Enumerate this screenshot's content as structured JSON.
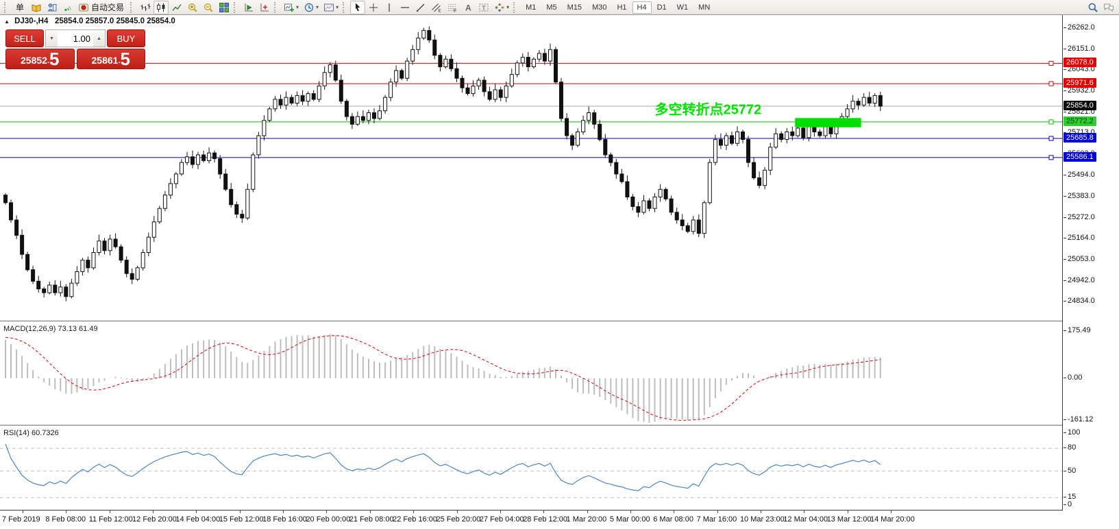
{
  "window": {
    "title_symbol": "DJ30-,H4",
    "ohlc": "25854.0 25857.0 25845.0 25854.0"
  },
  "toolbar": {
    "new_order_label": "单",
    "autotrading_label": "自动交易",
    "items": [
      {
        "type": "grip"
      },
      {
        "type": "text",
        "name": "new-order-button",
        "label": "单"
      },
      {
        "type": "icon",
        "name": "market-watch-icon"
      },
      {
        "type": "icon",
        "name": "navigator-icon"
      },
      {
        "type": "icon",
        "name": "signals-icon"
      },
      {
        "type": "icon-text",
        "name": "autotrading-button",
        "label": "自动交易"
      },
      {
        "type": "grip"
      },
      {
        "type": "icon",
        "name": "bar-chart-button"
      },
      {
        "type": "icon",
        "name": "candlestick-chart-button",
        "active": true
      },
      {
        "type": "icon",
        "name": "line-chart-button"
      },
      {
        "type": "icon",
        "name": "zoom-in-button"
      },
      {
        "type": "icon",
        "name": "zoom-out-button"
      },
      {
        "type": "icon",
        "name": "tile-windows-button"
      },
      {
        "type": "grip"
      },
      {
        "type": "icon",
        "name": "auto-scroll-button"
      },
      {
        "type": "icon",
        "name": "chart-shift-button"
      },
      {
        "type": "grip"
      },
      {
        "type": "icon",
        "name": "new-chart-button",
        "dropdown": true
      },
      {
        "type": "icon",
        "name": "profiles-button",
        "dropdown": true
      },
      {
        "type": "icon",
        "name": "templates-button",
        "dropdown": true
      },
      {
        "type": "grip"
      },
      {
        "type": "icon",
        "name": "cursor-button",
        "active": true
      },
      {
        "type": "icon",
        "name": "crosshair-button"
      },
      {
        "type": "icon",
        "name": "vertical-line-button"
      },
      {
        "type": "icon",
        "name": "horizontal-line-button"
      },
      {
        "type": "icon",
        "name": "trendline-button"
      },
      {
        "type": "icon",
        "name": "equidistant-channel-button"
      },
      {
        "type": "icon",
        "name": "fibonacci-button"
      },
      {
        "type": "icon",
        "name": "text-button"
      },
      {
        "type": "icon",
        "name": "text-label-button"
      },
      {
        "type": "icon",
        "name": "arrows-button",
        "dropdown": true
      },
      {
        "type": "grip"
      },
      {
        "type": "timeframes"
      },
      {
        "type": "spacer"
      },
      {
        "type": "icon",
        "name": "search-button"
      },
      {
        "type": "icon",
        "name": "chat-button"
      }
    ],
    "timeframes": {
      "options": [
        "M1",
        "M5",
        "M15",
        "M30",
        "H1",
        "H4",
        "D1",
        "W1",
        "MN"
      ],
      "active": "H4"
    }
  },
  "one_click": {
    "sell_label": "SELL",
    "buy_label": "BUY",
    "volume": "1.00",
    "sell_price_int": "25852",
    "sell_price_dec": "5",
    "buy_price_int": "25861",
    "buy_price_dec": "5"
  },
  "price_axis": {
    "ticks": [
      "26262.0",
      "26151.0",
      "26043.0",
      "25932.0",
      "25821.0",
      "25713.0",
      "25602.0",
      "25494.0",
      "25383.0",
      "25272.0",
      "25164.0",
      "25053.0",
      "24942.0",
      "24834.0"
    ]
  },
  "levels": [
    {
      "name": "resistance-line-1",
      "price": 26078.0,
      "label": "26078.0",
      "line_color": "#d80000",
      "label_bg": "#e40000",
      "label_color": "#ffffff",
      "handle": true
    },
    {
      "name": "resistance-line-2",
      "price": 25971.6,
      "label": "25971.6",
      "line_color": "#d80000",
      "label_bg": "#e40000",
      "label_color": "#ffffff",
      "handle": true
    },
    {
      "name": "current-price-line",
      "price": 25854.0,
      "label": "25854.0",
      "line_color": "#a8a8a8",
      "label_bg": "#0a0a0a",
      "label_color": "#ffffff",
      "handle": false
    },
    {
      "name": "pivot-line",
      "price": 25772.2,
      "label": "25772.2",
      "line_color": "#00c000",
      "label_bg": "#2fce2f",
      "label_color": "#033a03",
      "handle": true
    },
    {
      "name": "support-line-1",
      "price": 25685.8,
      "label": "25685.8",
      "line_color": "#0000c8",
      "label_bg": "#0000d8",
      "label_color": "#ffffff",
      "handle": true
    },
    {
      "name": "support-line-2",
      "price": 25586.1,
      "label": "25586.1",
      "line_color": "#0000c8",
      "label_bg": "#0000d8",
      "label_color": "#ffffff",
      "handle": true
    }
  ],
  "annotations": {
    "pivot_text": {
      "text": "多空转折点25772",
      "color": "#00e400",
      "index": 118,
      "price": 25812
    },
    "zone_rect": {
      "start_index": 144,
      "end_index": 155,
      "price_top": 25792,
      "price_bottom": 25744,
      "color": "#00dd00"
    }
  },
  "macd": {
    "label": "MACD(12,26,9) 73.13 61.49",
    "axis": [
      {
        "v": 175.49,
        "text": "175.49"
      },
      {
        "v": 0,
        "text": "0.00"
      },
      {
        "v": -161.12,
        "text": "-161.12"
      }
    ],
    "range": [
      -161.12,
      175.49
    ]
  },
  "rsi": {
    "label": "RSI(14) 60.7326",
    "axis": [
      {
        "v": 100,
        "text": "100"
      },
      {
        "v": 80,
        "text": "80"
      },
      {
        "v": 50,
        "text": "50"
      },
      {
        "v": 15,
        "text": "15"
      },
      {
        "v": 0,
        "text": "0"
      }
    ],
    "levels": [
      80,
      50,
      15
    ]
  },
  "time_axis": [
    "7 Feb 2019",
    "8 Feb 08:00",
    "11 Feb 12:00",
    "12 Feb 20:00",
    "14 Feb 04:00",
    "15 Feb 12:00",
    "18 Feb 16:00",
    "20 Feb 00:00",
    "21 Feb 08:00",
    "22 Feb 16:00",
    "25 Feb 20:00",
    "27 Feb 04:00",
    "28 Feb 12:00",
    "1 Mar 20:00",
    "5 Mar 00:00",
    "6 Mar 08:00",
    "7 Mar 16:00",
    "10 Mar 23:00",
    "12 Mar 04:00",
    "13 Mar 12:00",
    "14 Mar 20:00"
  ],
  "chart_data": {
    "type": "candlestick",
    "symbol": "DJ30-",
    "timeframe": "H4",
    "title": "DJ30-,H4 25854.0 25857.0 25845.0 25854.0",
    "ylim": [
      24834,
      26262
    ],
    "warmup_closes": [
      24650,
      24680,
      24710,
      24740,
      24770,
      24800,
      24830,
      24860,
      24890,
      24920,
      24950,
      24980,
      25010,
      25040,
      25070,
      25100,
      25130,
      25160,
      25190,
      25220,
      25250,
      25280,
      25310,
      25340,
      25360,
      25380,
      25390,
      25400,
      25400,
      25390
    ],
    "closes": [
      25350,
      25260,
      25180,
      25080,
      25000,
      24940,
      24900,
      24880,
      24920,
      24880,
      24910,
      24860,
      24930,
      24990,
      25050,
      25010,
      25090,
      25150,
      25100,
      25160,
      25120,
      25050,
      24980,
      24950,
      25010,
      25090,
      25170,
      25250,
      25320,
      25390,
      25450,
      25500,
      25560,
      25590,
      25550,
      25600,
      25570,
      25610,
      25580,
      25500,
      25420,
      25340,
      25290,
      25270,
      25420,
      25600,
      25700,
      25780,
      25840,
      25890,
      25860,
      25900,
      25870,
      25910,
      25880,
      25920,
      25890,
      25960,
      26030,
      26070,
      25990,
      25880,
      25800,
      25760,
      25800,
      25780,
      25820,
      25790,
      25830,
      25900,
      25980,
      26040,
      26000,
      26090,
      26150,
      26210,
      26250,
      26200,
      26120,
      26060,
      26100,
      26050,
      26000,
      25950,
      25920,
      25960,
      25990,
      25930,
      25890,
      25940,
      25900,
      25960,
      26020,
      26080,
      26110,
      26060,
      26100,
      26130,
      26090,
      26150,
      25980,
      25790,
      25700,
      25650,
      25720,
      25780,
      25820,
      25760,
      25680,
      25600,
      25560,
      25500,
      25460,
      25380,
      25330,
      25300,
      25360,
      25320,
      25380,
      25420,
      25370,
      25300,
      25260,
      25230,
      25200,
      25260,
      25190,
      25350,
      25560,
      25680,
      25650,
      25700,
      25660,
      25720,
      25680,
      25560,
      25480,
      25440,
      25520,
      25640,
      25710,
      25680,
      25720,
      25700,
      25740,
      25690,
      25760,
      25720,
      25700,
      25750,
      25710,
      25770,
      25800,
      25840,
      25880,
      25860,
      25900,
      25870,
      25910,
      25854
    ],
    "indicators": [
      {
        "type": "MACD",
        "params": [
          12,
          26,
          9
        ],
        "display_values": [
          73.13,
          61.49
        ],
        "range": [
          -161.12,
          175.49
        ]
      },
      {
        "type": "RSI",
        "params": [
          14
        ],
        "display_value": 60.7326,
        "range": [
          0,
          100
        ],
        "levels": [
          80,
          50,
          15
        ]
      }
    ]
  }
}
